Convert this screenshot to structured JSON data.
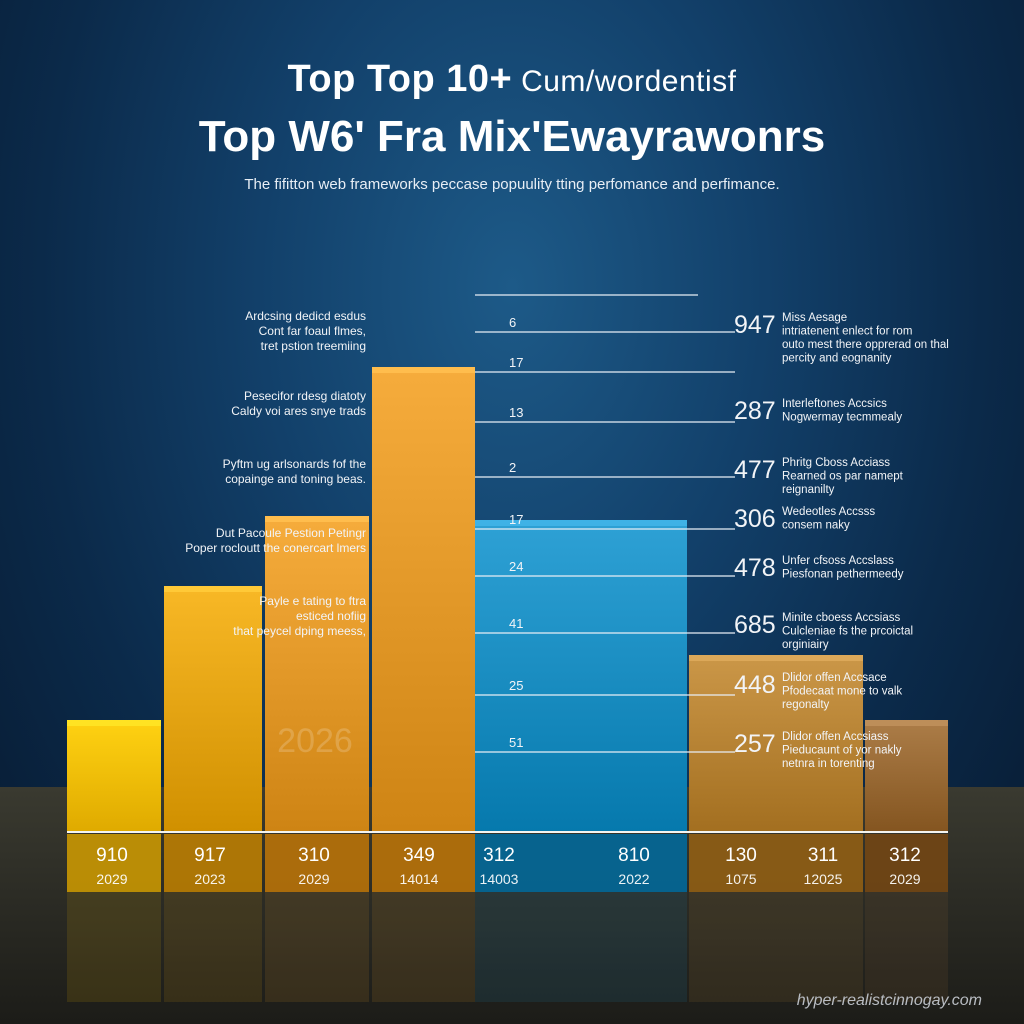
{
  "header": {
    "title_line1_bold": "Top  Top 10+",
    "title_line1_light": " Cum/wordentisf",
    "title_line2": "Top W6' Fra Mix'Ewayrawonrs",
    "subtitle": "The  fifitton web frameworks peccase popuulity tting perfomance and perfimance."
  },
  "watermark": "hyper-realistcinnogay.com",
  "colors": {
    "yellow": "#f5c000",
    "gold": "#e6a614",
    "orange": "#e49a2a",
    "blue": "#1c8fc3",
    "tan": "#b98536",
    "brown": "#9a6b36"
  },
  "chart_data": {
    "type": "bar",
    "title": "Top W6' Fra Mix'Ewayrawonrs",
    "categories": [
      {
        "value_label": "910",
        "year_label": "2029"
      },
      {
        "value_label": "917",
        "year_label": "2023"
      },
      {
        "value_label": "310",
        "year_label": "2029"
      },
      {
        "value_label": "349",
        "year_label": "14014"
      },
      {
        "value_label": "312",
        "year_label": "14003"
      },
      {
        "value_label": "810",
        "year_label": "2022"
      },
      {
        "value_label": "130",
        "year_label": "1075"
      },
      {
        "value_label": "311",
        "year_label": "12025"
      },
      {
        "value_label": "312",
        "year_label": "2029"
      }
    ],
    "bars": [
      {
        "height_fraction": 0.24,
        "color": "yellow"
      },
      {
        "height_fraction": 0.53,
        "color": "gold"
      },
      {
        "height_fraction": 0.68,
        "color": "orange"
      },
      {
        "height_fraction": 1.0,
        "color": "orange"
      },
      {
        "height_fraction": 0.67,
        "color": "blue"
      },
      {
        "height_fraction": 0.38,
        "color": "tan"
      },
      {
        "height_fraction": 0.24,
        "color": "brown"
      }
    ],
    "ghost_label": "2026",
    "center_ticks": [
      "6",
      "17",
      "13",
      "2",
      "17",
      "24",
      "41",
      "25",
      "51"
    ],
    "right_values": [
      "947",
      "287",
      "477",
      "306",
      "478",
      "685",
      "448",
      "257"
    ],
    "right_notes": [
      [
        "Miss Aesage",
        "intriatenent enlect for rom",
        "outo mest there opprerad on thal",
        "percity and eognanity"
      ],
      [
        "Interleftones Accsics",
        "Nogwermay tecmmealy"
      ],
      [
        "Phritg Cboss Acciass",
        "Rearned os par namept",
        "reignanilty"
      ],
      [
        "Wedeotles Accsss",
        "consem naky"
      ],
      [
        "Unfer cfsoss Accslass",
        "Piesfonan pethermeedy"
      ],
      [
        "Minite cboess Accsiass",
        "Culcleniae fs the prcoictal",
        "orginiairy"
      ],
      [
        "Dlidor offen Accsace",
        "Pfodecaat mone to valk",
        "regonalty"
      ],
      [
        "Dlidor offen Accsiass",
        "Pieducaunt of yor nakly",
        "netnra in torenting"
      ]
    ],
    "left_notes": [
      [
        "Ardcsing dedicd esdus",
        "Cont far foaul flmes,",
        "tret pstion treemiing"
      ],
      [
        "Pesecifor rdesg diatoty",
        "Caldy voi ares snye trads"
      ],
      [
        "Pyftm ug arlsonards fof the",
        "copainge and toning beas."
      ],
      [
        "Dut Pacoule Pestion Petingr",
        "Poper rocloutt the conercart lmers"
      ],
      [
        "Payle e tating to ftra",
        "esticed nofiig",
        "that peycel dping meess,"
      ]
    ]
  }
}
